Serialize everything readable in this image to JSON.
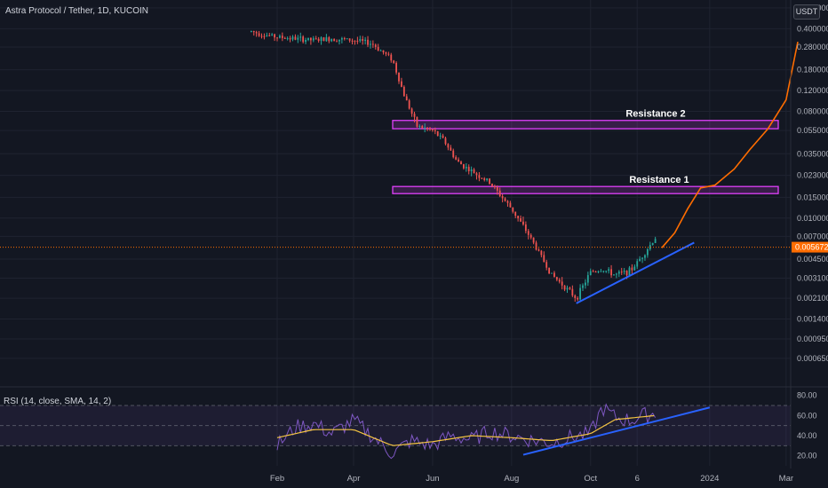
{
  "header": {
    "title": "Astra Protocol / Tether, 1D, KUCOIN",
    "currency": "USDT"
  },
  "colors": {
    "background": "#131722",
    "candle_up": "#26a69a",
    "candle_down": "#ef5350",
    "projection": "#ff6d00",
    "trendline": "#2962ff",
    "zone": "#e040fb",
    "rsi_line": "#7e57c2",
    "rsi_ma": "#f5c542",
    "price_label": "#ff6d00"
  },
  "chart_data": [
    {
      "type": "line",
      "title": "Astra Protocol / Tether, 1D, KUCOIN",
      "yscale": "log",
      "ylim": [
        0.0004,
        0.7
      ],
      "y_ticks": [
        "0.600000",
        "0.400000",
        "0.280000",
        "0.180000",
        "0.120000",
        "0.080000",
        "0.055000",
        "0.035000",
        "0.023000",
        "0.015000",
        "0.010000",
        "0.007000",
        "0.004500",
        "0.003100",
        "0.002100",
        "0.001400",
        "0.000950",
        "0.000650"
      ],
      "x_ticks": [
        "Feb",
        "Apr",
        "Jun",
        "Aug",
        "Oct",
        "6",
        "2024",
        "Mar"
      ],
      "current_price": "0.005672",
      "series": [
        {
          "x": [
            "Jan 12",
            "Jan 20",
            "Feb 1",
            "Feb 15",
            "Mar 1",
            "Mar 15",
            "Apr 1",
            "Apr 15",
            "May 1",
            "May 10",
            "May 20",
            "Jun 1",
            "Jun 10",
            "Jun 20",
            "Jul 1",
            "Jul 15",
            "Aug 1",
            "Aug 15",
            "Sep 1",
            "Sep 10",
            "Sep 20",
            "Oct 1",
            "Oct 10",
            "Oct 20",
            "Nov 1",
            "Nov 10",
            "Nov 20"
          ],
          "values": [
            0.38,
            0.36,
            0.34,
            0.33,
            0.32,
            0.33,
            0.32,
            0.3,
            0.22,
            0.11,
            0.06,
            0.055,
            0.045,
            0.03,
            0.025,
            0.02,
            0.012,
            0.007,
            0.0033,
            0.0027,
            0.0021,
            0.0035,
            0.0037,
            0.0033,
            0.0036,
            0.0048,
            0.0068
          ]
        },
        {
          "x": [
            "Nov 25",
            "Dec 5",
            "Dec 15",
            "Dec 25",
            "Jan 5",
            "Jan 20",
            "Feb 1",
            "Feb 15",
            "Mar 1",
            "Mar 10"
          ],
          "values": [
            0.0056,
            0.0075,
            0.012,
            0.018,
            0.019,
            0.026,
            0.038,
            0.057,
            0.1,
            0.31
          ]
        }
      ],
      "annotations": [
        {
          "label": "Resistance 1",
          "range": [
            0.0165,
            0.0185
          ]
        },
        {
          "label": "Resistance 2",
          "range": [
            0.057,
            0.067
          ]
        }
      ]
    },
    {
      "type": "line",
      "title": "RSI (14, close, SMA, 14, 2)",
      "ylim": [
        10,
        85
      ],
      "y_ticks": [
        "80.00",
        "60.00",
        "40.00",
        "20.00"
      ],
      "bands": [
        30,
        50,
        70
      ],
      "series": [
        {
          "x": [
            "Feb 1",
            "Feb 15",
            "Mar 1",
            "Mar 15",
            "Apr 1",
            "Apr 15",
            "May 1",
            "May 15",
            "Jun 1",
            "Jun 15",
            "Jul 1",
            "Jul 15",
            "Aug 1",
            "Aug 15",
            "Sep 1",
            "Sep 15",
            "Oct 1",
            "Oct 10",
            "Oct 20",
            "Nov 1",
            "Nov 10",
            "Nov 20"
          ],
          "values": [
            30,
            48,
            52,
            42,
            55,
            40,
            22,
            35,
            30,
            40,
            36,
            44,
            40,
            36,
            33,
            38,
            42,
            68,
            58,
            55,
            60,
            62
          ]
        },
        {
          "x": [
            "Feb 1",
            "Mar 1",
            "Apr 1",
            "May 1",
            "Jun 1",
            "Jul 1",
            "Aug 1",
            "Sep 1",
            "Oct 1",
            "Oct 20",
            "Nov 20"
          ],
          "values": [
            38,
            46,
            46,
            30,
            34,
            40,
            38,
            35,
            42,
            56,
            60
          ]
        }
      ]
    }
  ]
}
